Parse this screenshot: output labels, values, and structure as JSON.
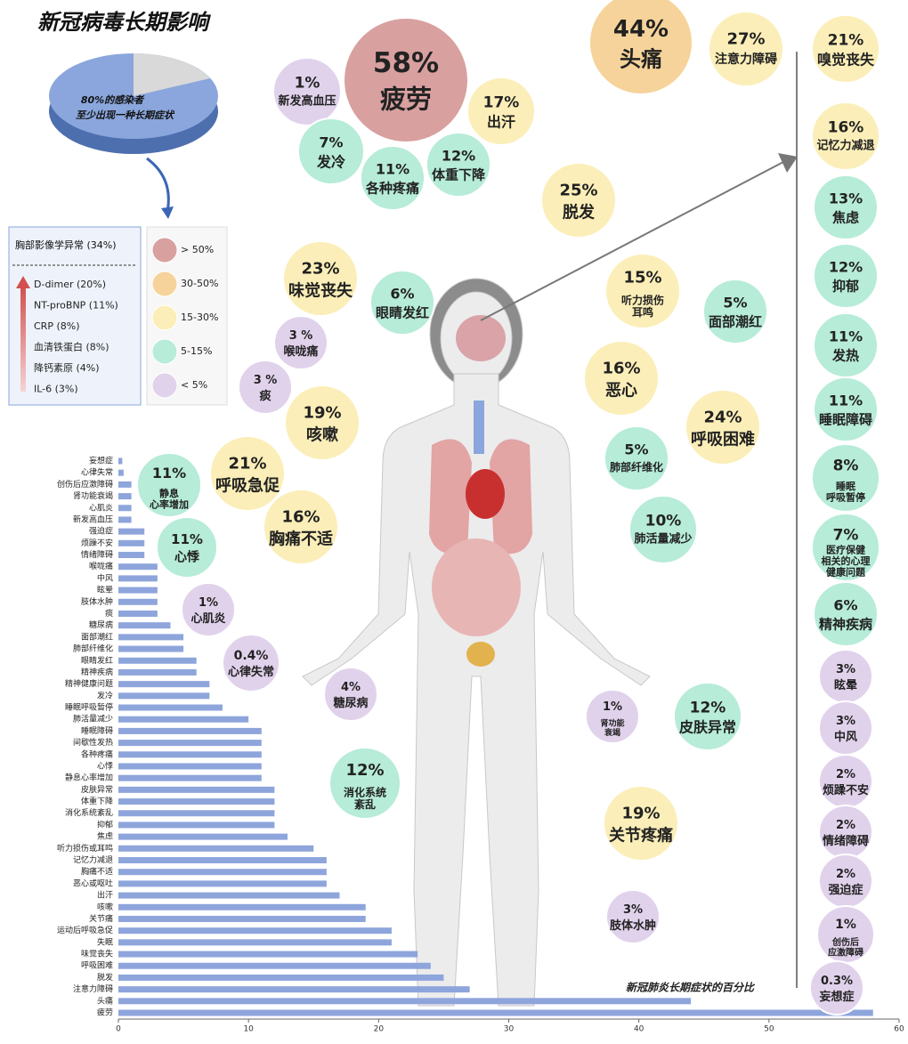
{
  "title": "新冠病毒长期影响",
  "pie_note": [
    "80%的感染者",
    "至少出现一种长期症状"
  ],
  "biomarkers": {
    "title": "胸部影像学异常 (34%)",
    "items": [
      "D-dimer (20%)",
      "NT-proBNP (11%)",
      "CRP (8%)",
      "血清铁蛋白 (8%)",
      "降钙素原 (4%)",
      "IL-6 (3%)"
    ]
  },
  "legend": [
    {
      "label": "> 50%",
      "color": "#d9a0a0"
    },
    {
      "label": "30-50%",
      "color": "#f6d39a"
    },
    {
      "label": "15-30%",
      "color": "#fbeeb8"
    },
    {
      "label": "5-15%",
      "color": "#b6ecd8"
    },
    {
      "label": "< 5%",
      "color": "#e1d2ec"
    }
  ],
  "bubbles": [
    {
      "value": 58,
      "value_label": "58%",
      "name": [
        "疲劳"
      ],
      "color": "#d9a0a0"
    },
    {
      "value": 44,
      "value_label": "44%",
      "name": [
        "头痛"
      ],
      "color": "#f6d39a"
    },
    {
      "value": 1,
      "value_label": "1%",
      "name": [
        "新发高血压"
      ],
      "color": "#e1d2ec"
    },
    {
      "value": 17,
      "value_label": "17%",
      "name": [
        "出汗"
      ],
      "color": "#fbeeb8"
    },
    {
      "value": 7,
      "value_label": "7%",
      "name": [
        "发冷"
      ],
      "color": "#b6ecd8"
    },
    {
      "value": 11,
      "value_label": "11%",
      "name": [
        "各种疼痛"
      ],
      "color": "#b6ecd8"
    },
    {
      "value": 12,
      "value_label": "12%",
      "name": [
        "体重下降"
      ],
      "color": "#b6ecd8"
    },
    {
      "value": 27,
      "value_label": "27%",
      "name": [
        "注意力障碍"
      ],
      "color": "#fbeeb8"
    },
    {
      "value": 21,
      "value_label": "21%",
      "name": [
        "嗅觉丧失"
      ],
      "color": "#fbeeb8"
    },
    {
      "value": 16,
      "value_label": "16%",
      "name": [
        "记忆力减退"
      ],
      "color": "#fbeeb8"
    },
    {
      "value": 25,
      "value_label": "25%",
      "name": [
        "脱发"
      ],
      "color": "#fbeeb8"
    },
    {
      "value": 13,
      "value_label": "13%",
      "name": [
        "焦虑"
      ],
      "color": "#b6ecd8"
    },
    {
      "value": 12,
      "value_label": "12%",
      "name": [
        "抑郁"
      ],
      "color": "#b6ecd8"
    },
    {
      "value": 11,
      "value_label": "11%",
      "name": [
        "发热"
      ],
      "color": "#b6ecd8"
    },
    {
      "value": 11,
      "value_label": "11%",
      "name": [
        "睡眠障碍"
      ],
      "color": "#b6ecd8"
    },
    {
      "value": 8,
      "value_label": "8%",
      "name": [
        "睡眠",
        "呼吸暂停"
      ],
      "color": "#b6ecd8"
    },
    {
      "value": 7,
      "value_label": "7%",
      "name": [
        "医疗保健",
        "相关的心理",
        "健康问题"
      ],
      "color": "#b6ecd8"
    },
    {
      "value": 6,
      "value_label": "6%",
      "name": [
        "精神疾病"
      ],
      "color": "#b6ecd8"
    },
    {
      "value": 3,
      "value_label": "3%",
      "name": [
        "眩晕"
      ],
      "color": "#e1d2ec"
    },
    {
      "value": 3,
      "value_label": "3%",
      "name": [
        "中风"
      ],
      "color": "#e1d2ec"
    },
    {
      "value": 2,
      "value_label": "2%",
      "name": [
        "烦躁不安"
      ],
      "color": "#e1d2ec"
    },
    {
      "value": 2,
      "value_label": "2%",
      "name": [
        "情绪障碍"
      ],
      "color": "#e1d2ec"
    },
    {
      "value": 2,
      "value_label": "2%",
      "name": [
        "强迫症"
      ],
      "color": "#e1d2ec"
    },
    {
      "value": 1,
      "value_label": "1%",
      "name": [
        "创伤后",
        "应激障碍"
      ],
      "color": "#e1d2ec"
    },
    {
      "value": 0.3,
      "value_label": "0.3%",
      "name": [
        "妄想症"
      ],
      "color": "#e1d2ec"
    },
    {
      "value": 23,
      "value_label": "23%",
      "name": [
        "味觉丧失"
      ],
      "color": "#fbeeb8"
    },
    {
      "value": 6,
      "value_label": "6%",
      "name": [
        "眼睛发红"
      ],
      "color": "#b6ecd8"
    },
    {
      "value": 15,
      "value_label": "15%",
      "name": [
        "听力损伤",
        "耳鸣"
      ],
      "color": "#fbeeb8"
    },
    {
      "value": 5,
      "value_label": "5%",
      "name": [
        "面部潮红"
      ],
      "color": "#b6ecd8"
    },
    {
      "value": 3,
      "value_label": "3 %",
      "name": [
        "喉咙痛"
      ],
      "color": "#e1d2ec"
    },
    {
      "value": 3,
      "value_label": "3 %",
      "name": [
        "痰"
      ],
      "color": "#e1d2ec"
    },
    {
      "value": 16,
      "value_label": "16%",
      "name": [
        "恶心"
      ],
      "color": "#fbeeb8"
    },
    {
      "value": 19,
      "value_label": "19%",
      "name": [
        "咳嗽"
      ],
      "color": "#fbeeb8"
    },
    {
      "value": 24,
      "value_label": "24%",
      "name": [
        "呼吸困难"
      ],
      "color": "#fbeeb8"
    },
    {
      "value": 21,
      "value_label": "21%",
      "name": [
        "呼吸急促"
      ],
      "color": "#fbeeb8"
    },
    {
      "value": 5,
      "value_label": "5%",
      "name": [
        "肺部纤维化"
      ],
      "color": "#b6ecd8"
    },
    {
      "value": 11,
      "value_label": "11%",
      "name": [
        "静息",
        "心率增加"
      ],
      "color": "#b6ecd8"
    },
    {
      "value": 16,
      "value_label": "16%",
      "name": [
        "胸痛不适"
      ],
      "color": "#fbeeb8"
    },
    {
      "value": 10,
      "value_label": "10%",
      "name": [
        "肺活量减少"
      ],
      "color": "#b6ecd8"
    },
    {
      "value": 11,
      "value_label": "11%",
      "name": [
        "心悸"
      ],
      "color": "#b6ecd8"
    },
    {
      "value": 1,
      "value_label": "1%",
      "name": [
        "心肌炎"
      ],
      "color": "#e1d2ec"
    },
    {
      "value": 0.4,
      "value_label": "0.4%",
      "name": [
        "心律失常"
      ],
      "color": "#e1d2ec"
    },
    {
      "value": 4,
      "value_label": "4%",
      "name": [
        "糖尿病"
      ],
      "color": "#e1d2ec"
    },
    {
      "value": 1,
      "value_label": "1%",
      "name": [
        "肾功能",
        "衰竭"
      ],
      "color": "#e1d2ec"
    },
    {
      "value": 12,
      "value_label": "12%",
      "name": [
        "皮肤异常"
      ],
      "color": "#b6ecd8"
    },
    {
      "value": 12,
      "value_label": "12%",
      "name": [
        "消化系统",
        "紊乱"
      ],
      "color": "#b6ecd8"
    },
    {
      "value": 19,
      "value_label": "19%",
      "name": [
        "关节疼痛"
      ],
      "color": "#fbeeb8"
    },
    {
      "value": 3,
      "value_label": "3%",
      "name": [
        "肢体水肿"
      ],
      "color": "#e1d2ec"
    }
  ],
  "chart_data": {
    "type": "barh",
    "title": "新冠肺炎长期症状的百分比",
    "color": "#8ea5dc",
    "categories": [
      "妄想症",
      "心律失常",
      "创伤后应激障碍",
      "肾功能衰竭",
      "心肌炎",
      "新发高血压",
      "强迫症",
      "烦躁不安",
      "情绪障碍",
      "喉咙痛",
      "中风",
      "眩晕",
      "肢体水肿",
      "痰",
      "糖尿病",
      "面部潮红",
      "肺部纤维化",
      "眼睛发红",
      "精神疾病",
      "精神健康问题",
      "发冷",
      "睡眠呼吸暂停",
      "肺活量减少",
      "睡眠障碍",
      "间歇性发热",
      "各种疼痛",
      "心悸",
      "静息心率增加",
      "皮肤异常",
      "体重下降",
      "消化系统紊乱",
      "抑郁",
      "焦虑",
      "听力损伤或耳鸣",
      "记忆力减退",
      "胸痛不适",
      "恶心或呕吐",
      "出汗",
      "咳嗽",
      "关节痛",
      "运动后呼吸急促",
      "失眠",
      "味觉丧失",
      "呼吸困难",
      "脱发",
      "注意力障碍",
      "头痛",
      "疲劳"
    ],
    "values": [
      0.3,
      0.4,
      1,
      1,
      1,
      1,
      2,
      2,
      2,
      3,
      3,
      3,
      3,
      3,
      4,
      5,
      5,
      6,
      6,
      7,
      7,
      8,
      10,
      11,
      11,
      11,
      11,
      11,
      12,
      12,
      12,
      12,
      13,
      15,
      16,
      16,
      16,
      17,
      19,
      19,
      21,
      21,
      23,
      24,
      25,
      27,
      44,
      58
    ],
    "xlim": [
      0,
      60
    ],
    "xticks": [
      0,
      10,
      20,
      30,
      40,
      50,
      60
    ]
  }
}
